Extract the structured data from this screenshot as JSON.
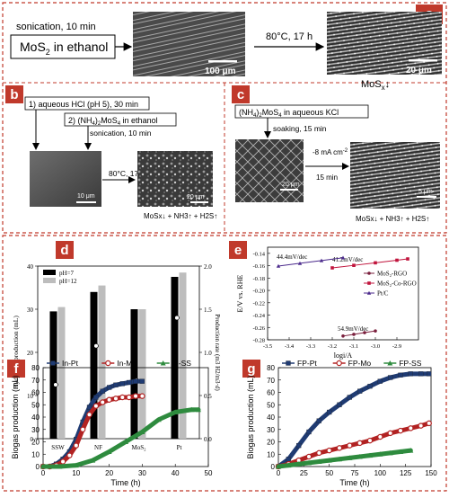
{
  "panels": {
    "a": {
      "letter": "a",
      "step1": "sonication, 10 min",
      "start": "MoS",
      "start_sub": "2",
      "start_tail": " in ethanol",
      "step2": "80°C, 17 h",
      "scale1": "100 μm",
      "scale2": "20 μm",
      "product": "MoS",
      "product_sub": "x",
      "product_arrow": "↓"
    },
    "b": {
      "letter": "b",
      "step1": "1) aqueous HCl (pH 5), 30 min",
      "step2a": "2) (NH",
      "step2b": "4",
      "step2c": ")",
      "step2d": "2",
      "step2e": "MoS",
      "step2f": "4",
      "step2g": " in ethanol",
      "sonication": "sonication, 10 min",
      "heat": "80°C, 17 h",
      "scale1": "10 μm",
      "scale2": "20 μm",
      "product": "MoSx↓ + NH3↑ + H2S↑"
    },
    "c": {
      "letter": "c",
      "reagent_a": "(NH",
      "reagent_b": "4",
      "reagent_c": ")",
      "reagent_d": "2",
      "reagent_e": "MoS",
      "reagent_f": "4",
      "reagent_g": " in aqueous KCl",
      "soak": "soaking, 15 min",
      "current": "-8 mA cm",
      "current_sup": "-2",
      "time": "15 min",
      "scale1": "20 μm",
      "scale2": "5 μm",
      "product": "MoSx↓ + NH3↑ + H2S↑"
    }
  },
  "chart_data": [
    {
      "panel": "d",
      "type": "bar",
      "categories": [
        "SSW",
        "NF",
        "MoS2",
        "Pt"
      ],
      "series": [
        {
          "name": "pH=7",
          "values": [
            29.5,
            34,
            30,
            37.5
          ]
        },
        {
          "name": "pH=12",
          "values": [
            30.5,
            35.5,
            30,
            38.5
          ]
        }
      ],
      "markers": {
        "filled": [
          9.5,
          14.5,
          null,
          27.5
        ],
        "open": [
          12.5,
          21.5,
          13.5,
          28
        ]
      },
      "ylabel": "Hydrogen production (mL)",
      "y2label": "Production rate (m3 H2/m3·d)",
      "ylim": [
        0,
        40
      ],
      "yticks": [
        0,
        10,
        20,
        30,
        40
      ],
      "y2ticks": [
        "0.0",
        "0.5",
        "1.0",
        "1.5",
        "2.0"
      ],
      "legend": "top-left"
    },
    {
      "panel": "e",
      "type": "scatter",
      "series": [
        {
          "name": "MoS2-RGO",
          "color": "#7a1f3d",
          "x": [
            -3.15,
            -3.1,
            -3.05,
            -3.0
          ],
          "y": [
            -0.2739,
            -0.2712,
            -0.2684,
            -0.2657
          ],
          "slope_label": "54.9mV/dec"
        },
        {
          "name": "MoS2-Co-RGO",
          "color": "#c0143c",
          "x": [
            -3.2,
            -3.1,
            -3.0,
            -2.9,
            -2.85
          ],
          "y": [
            -0.1635,
            -0.1594,
            -0.1553,
            -0.1511,
            -0.149
          ],
          "slope_label": "41.2mV/dec"
        },
        {
          "name": "Pt/C",
          "color": "#4b2a8c",
          "x": [
            -3.45,
            -3.35,
            -3.25,
            -3.15
          ],
          "y": [
            -0.1605,
            -0.1561,
            -0.1516,
            -0.1471
          ],
          "slope_label": "44.4mV/dec"
        }
      ],
      "xlabel": "logi/A",
      "ylabel": "E/V vs. RHE",
      "xlim": [
        -3.5,
        -2.8
      ],
      "ylim": [
        -0.28,
        -0.13
      ],
      "xticks": [
        "-3.5",
        "-3.4",
        "-3.3",
        "-3.2",
        "-3.1",
        "-3.0",
        "-2.9"
      ],
      "yticks": [
        "-0.28",
        "-0.26",
        "-0.24",
        "-0.22",
        "-0.20",
        "-0.18",
        "-0.16",
        "-0.14"
      ]
    },
    {
      "panel": "f",
      "type": "line",
      "series": [
        {
          "name": "In-Pt",
          "color": "#1f3b73",
          "marker": "square",
          "x": [
            0,
            2,
            4,
            6,
            8,
            10,
            12,
            14,
            16,
            18,
            20,
            22,
            24,
            26,
            28,
            30
          ],
          "y": [
            0,
            0,
            2,
            6,
            12,
            22,
            36,
            48,
            56,
            61,
            64,
            66,
            67,
            68,
            69,
            69
          ]
        },
        {
          "name": "In-Mo",
          "color": "#b22222",
          "marker": "circle",
          "x": [
            0,
            2,
            4,
            6,
            8,
            10,
            12,
            14,
            16,
            18,
            20,
            22,
            24,
            26,
            28,
            30
          ],
          "y": [
            0,
            0,
            1,
            4,
            9,
            17,
            30,
            42,
            49,
            52,
            54,
            55,
            56,
            56,
            57,
            57
          ]
        },
        {
          "name": "In-SS",
          "color": "#2e8b3e",
          "marker": "triangle",
          "x": [
            0,
            5,
            10,
            15,
            20,
            25,
            30,
            35,
            40,
            45,
            47
          ],
          "y": [
            0,
            0,
            1,
            5,
            12,
            20,
            28,
            38,
            44,
            46,
            46
          ]
        }
      ],
      "xlabel": "Time (h)",
      "ylabel": "Biogas production (mL)",
      "xlim": [
        0,
        50
      ],
      "ylim": [
        0,
        80
      ],
      "xticks": [
        "0",
        "10",
        "20",
        "30",
        "40",
        "50"
      ],
      "yticks": [
        "0",
        "10",
        "20",
        "30",
        "40",
        "50",
        "60",
        "70",
        "80"
      ],
      "legend": "top"
    },
    {
      "panel": "g",
      "type": "line",
      "series": [
        {
          "name": "FP-Pt",
          "color": "#1f3b73",
          "marker": "square",
          "x": [
            0,
            10,
            20,
            30,
            40,
            50,
            60,
            70,
            80,
            90,
            100,
            110,
            120,
            130,
            140,
            148
          ],
          "y": [
            0,
            6,
            17,
            28,
            37,
            44,
            50,
            56,
            61,
            65,
            69,
            72,
            74,
            75,
            75,
            75
          ]
        },
        {
          "name": "FP-Mo",
          "color": "#b22222",
          "marker": "circle",
          "x": [
            0,
            10,
            20,
            30,
            40,
            50,
            60,
            70,
            80,
            90,
            100,
            110,
            120,
            130,
            140,
            148
          ],
          "y": [
            0,
            2,
            5,
            8,
            11,
            13,
            15,
            17,
            19,
            21,
            24,
            27,
            29,
            31,
            33,
            35
          ]
        },
        {
          "name": "FP-SS",
          "color": "#2e8b3e",
          "marker": "triangle",
          "x": [
            0,
            10,
            20,
            30,
            40,
            50,
            60,
            70,
            80,
            90,
            100,
            110,
            120,
            130
          ],
          "y": [
            0,
            1,
            2,
            3,
            4,
            5,
            6,
            7,
            8,
            9,
            10,
            11,
            12,
            13
          ]
        }
      ],
      "xlabel": "Time (h)",
      "ylabel": "Biogas production (mL)",
      "xlim": [
        0,
        150
      ],
      "ylim": [
        0,
        80
      ],
      "xticks": [
        "0",
        "25",
        "50",
        "75",
        "100",
        "125",
        "150"
      ],
      "yticks": [
        "0",
        "10",
        "20",
        "30",
        "40",
        "50",
        "60",
        "70",
        "80"
      ],
      "legend": "top"
    }
  ]
}
